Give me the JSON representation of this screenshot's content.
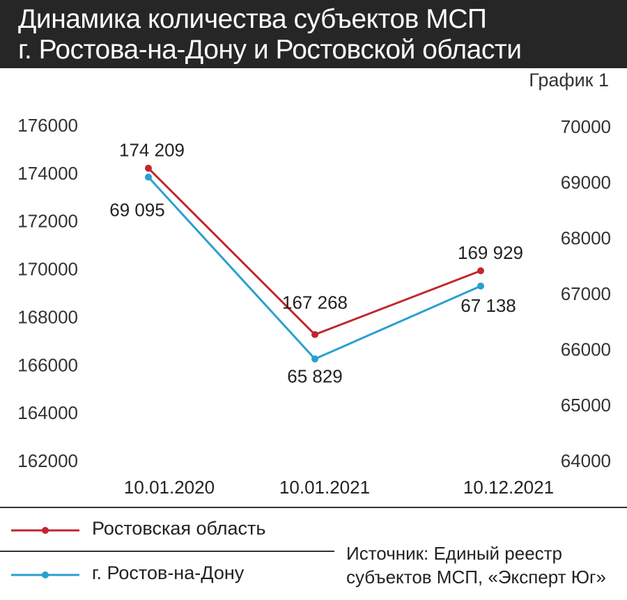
{
  "title": {
    "line1": "Динамика количества субъектов МСП",
    "line2": "г. Ростова-на-Дону и Ростовской области"
  },
  "chart_label": "График 1",
  "chart_data": {
    "type": "line",
    "categories": [
      "10.01.2020",
      "10.01.2021",
      "10.12.2021"
    ],
    "series": [
      {
        "name": "Ростовская область",
        "axis": "left",
        "color": "#c0272d",
        "values": [
          174209,
          167268,
          169929
        ],
        "value_labels": [
          "174 209",
          "167 268",
          "169 929"
        ]
      },
      {
        "name": "г. Ростов-на-Дону",
        "axis": "right",
        "color": "#2a9fd0",
        "values": [
          69095,
          65829,
          67138
        ],
        "value_labels": [
          "69 095",
          "65 829",
          "67 138"
        ]
      }
    ],
    "y_left": {
      "ticks": [
        "162000",
        "164000",
        "166000",
        "168000",
        "170000",
        "172000",
        "174000",
        "176000"
      ],
      "ylim": [
        162000,
        176000
      ]
    },
    "y_right": {
      "ticks": [
        "64000",
        "65000",
        "66000",
        "67000",
        "68000",
        "69000",
        "70000"
      ],
      "ylim": [
        64000,
        70000
      ]
    },
    "grid": false,
    "legend": "bottom-left"
  },
  "legend": [
    {
      "label": "Ростовская область",
      "color": "#c0272d"
    },
    {
      "label": "г. Ростов-на-Дону",
      "color": "#2a9fd0"
    }
  ],
  "source": {
    "line1": "Источник: Единый реестр",
    "line2": "субъектов МСП, «Эксперт Юг»"
  }
}
